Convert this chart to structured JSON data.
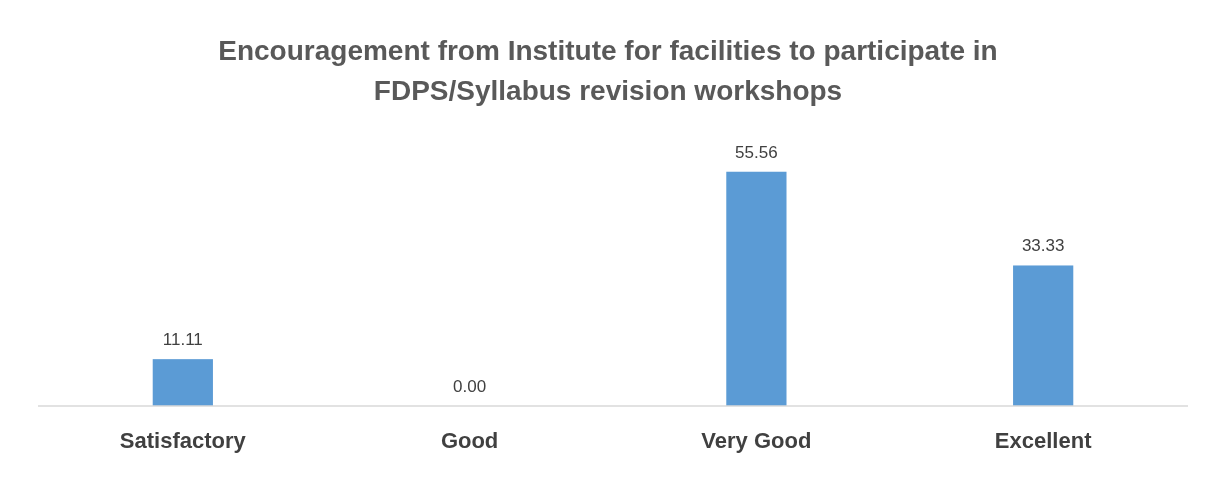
{
  "chart_data": {
    "type": "bar",
    "title": "Encouragement from Institute for facilities to participate in\nFDPS/Syllabus revision workshops",
    "categories": [
      "Satisfactory",
      "Good",
      "Very Good",
      "Excellent"
    ],
    "values": [
      11.11,
      0,
      55.56,
      33.33
    ],
    "color": "#5b9bd5",
    "value_labels": [
      "11.11",
      "0.00",
      "55.56",
      "33.33"
    ]
  }
}
